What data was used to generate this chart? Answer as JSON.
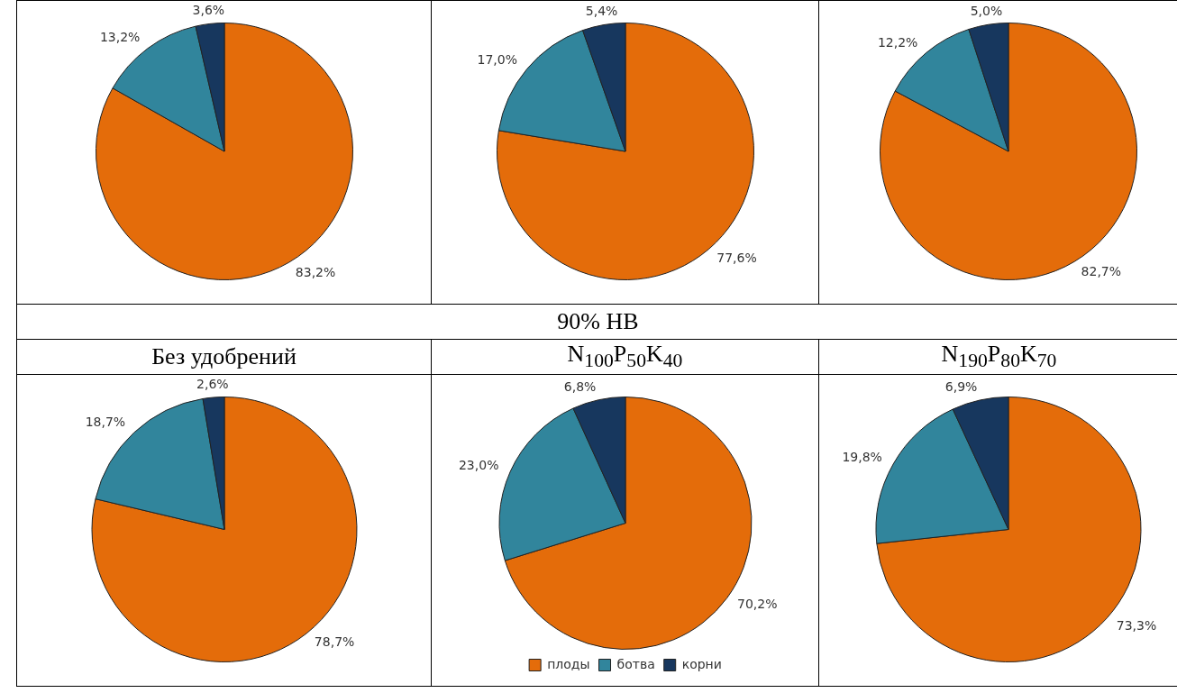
{
  "chart_data": [
    {
      "type": "pie",
      "categories": [
        null,
        null,
        null
      ],
      "values": [
        83.2,
        13.2,
        3.6
      ],
      "value_labels": [
        "83,2%",
        "13,2%",
        "3,6%"
      ],
      "colors": [
        "#e46c0a",
        "#31859c",
        "#17375e"
      ]
    },
    {
      "type": "pie",
      "categories": [
        null,
        null,
        null
      ],
      "values": [
        77.6,
        17.0,
        5.4
      ],
      "value_labels": [
        "77,6%",
        "17,0%",
        "5,4%"
      ],
      "colors": [
        "#e46c0a",
        "#31859c",
        "#17375e"
      ]
    },
    {
      "type": "pie",
      "categories": [
        null,
        null,
        null
      ],
      "values": [
        82.7,
        12.2,
        5.0
      ],
      "value_labels": [
        "82,7%",
        "12,2%",
        "5,0%"
      ],
      "colors": [
        "#e46c0a",
        "#31859c",
        "#17375e"
      ]
    },
    {
      "type": "other",
      "title": "90% НВ"
    },
    {
      "type": "pie",
      "title": "Без удобрений",
      "categories": [
        null,
        null,
        null
      ],
      "values": [
        78.7,
        18.7,
        2.6
      ],
      "value_labels": [
        "78,7%",
        "18,7%",
        "2,6%"
      ],
      "colors": [
        "#e46c0a",
        "#31859c",
        "#17375e"
      ]
    },
    {
      "type": "pie",
      "title": "N$_{100}$P$_{50}$K$_{40}$",
      "categories": [
        "плоды",
        "ботва",
        "корни"
      ],
      "values": [
        70.2,
        23.0,
        6.8
      ],
      "value_labels": [
        "70,2%",
        "23,0%",
        "6,8%"
      ],
      "colors": [
        "#e46c0a",
        "#31859c",
        "#17375e"
      ],
      "legend": "bottom"
    },
    {
      "type": "pie",
      "title": "N$_{190}$P$_{80}$K$_{70}$",
      "categories": [
        null,
        null,
        null
      ],
      "values": [
        73.3,
        19.8,
        6.9
      ],
      "value_labels": [
        "73,3%",
        "19,8%",
        "6,9%"
      ],
      "colors": [
        "#e46c0a",
        "#31859c",
        "#17375e"
      ]
    }
  ]
}
